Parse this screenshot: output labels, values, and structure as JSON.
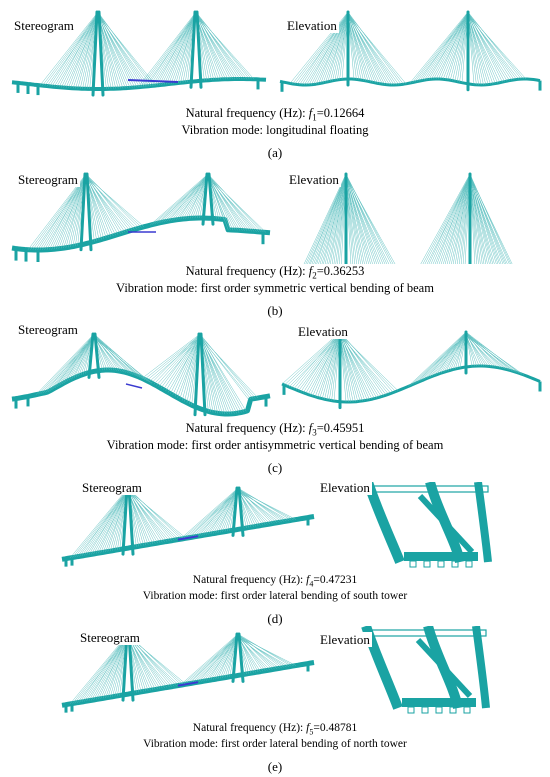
{
  "colors": {
    "structure": "#1aa3a3",
    "cable": "#5cc0c0",
    "accent": "#3a3ad0"
  },
  "panels": [
    {
      "id": "a",
      "left_label": "Stereogram",
      "right_label": "Elevation",
      "freq_prefix": "Natural frequency (Hz): ",
      "freq_sym": "f",
      "freq_sub": "1",
      "freq_val": "=0.12664",
      "mode": "Vibration mode: longitudinal floating",
      "letter": "(a)"
    },
    {
      "id": "b",
      "left_label": "Stereogram",
      "right_label": "Elevation",
      "freq_prefix": "Natural frequency (Hz): ",
      "freq_sym": "f",
      "freq_sub": "2",
      "freq_val": "=0.36253",
      "mode": "Vibration mode: first order symmetric vertical bending of beam",
      "letter": "(b)"
    },
    {
      "id": "c",
      "left_label": "Stereogram",
      "right_label": "Elevation",
      "freq_prefix": "Natural frequency (Hz): ",
      "freq_sym": "f",
      "freq_sub": "3",
      "freq_val": "=0.45951",
      "mode": "Vibration mode: first order antisymmetric vertical bending of beam",
      "letter": "(c)"
    },
    {
      "id": "d",
      "left_label": "Stereogram",
      "right_label": "Elevation",
      "freq_prefix": "Natural frequency (Hz): ",
      "freq_sym": "f",
      "freq_sub": "4",
      "freq_val": "=0.47231",
      "mode": "Vibration mode: first order lateral bending of south tower",
      "letter": "(d)"
    },
    {
      "id": "e",
      "left_label": "Stereogram",
      "right_label": "Elevation",
      "freq_prefix": "Natural frequency (Hz): ",
      "freq_sym": "f",
      "freq_sub": "5",
      "freq_val": "=0.48781",
      "mode": "Vibration mode: first order lateral bending of north tower",
      "letter": "(e)"
    }
  ]
}
